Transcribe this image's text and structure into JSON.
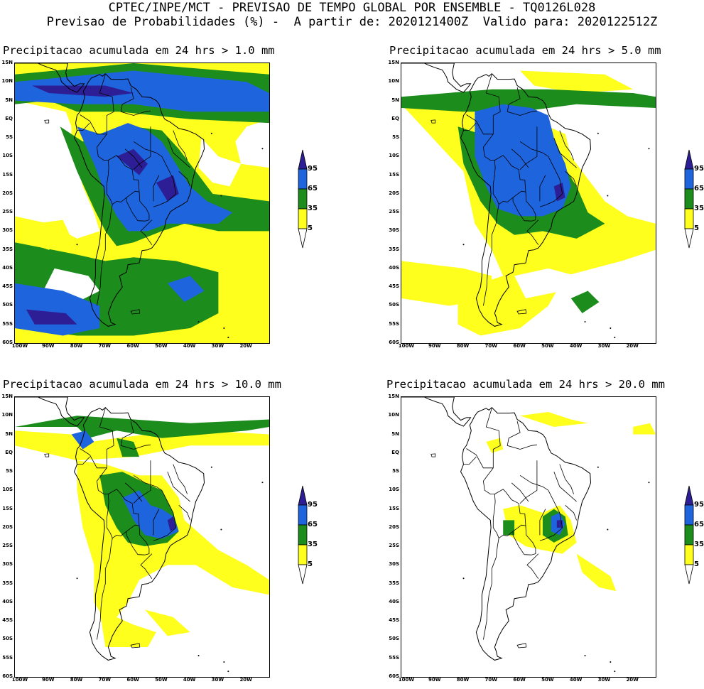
{
  "header": {
    "line1": "CPTEC/INPE/MCT - PREVISAO DE TEMPO GLOBAL POR ENSEMBLE - TQ0126L028",
    "line2": "Previsao de Probabilidades (%) -  A partir de: 2020121400Z  Valido para: 2020122512Z"
  },
  "panels": [
    {
      "title": "Precipitacao acumulada em 24 hrs > 1.0 mm",
      "level": 1
    },
    {
      "title": "Precipitacao acumulada em 24 hrs > 5.0 mm",
      "level": 2
    },
    {
      "title": "Precipitacao acumulada em 24 hrs > 10.0 mm",
      "level": 3
    },
    {
      "title": "Precipitacao acumulada em 24 hrs > 20.0 mm",
      "level": 4
    }
  ],
  "lat_labels": [
    "15N",
    "10N",
    "5N",
    "EQ",
    "5S",
    "10S",
    "15S",
    "20S",
    "25S",
    "30S",
    "35S",
    "40S",
    "45S",
    "50S",
    "55S",
    "60S"
  ],
  "lon_labels": [
    "100W",
    "90W",
    "80W",
    "70W",
    "60W",
    "50W",
    "40W",
    "30W",
    "20W"
  ],
  "legend": {
    "labels": [
      "95",
      "65",
      "35",
      "5"
    ],
    "colors": {
      "yellow": "#ffff1e",
      "green": "#1c8c1c",
      "blue": "#1e64dc",
      "navy": "#2d1e96"
    }
  }
}
